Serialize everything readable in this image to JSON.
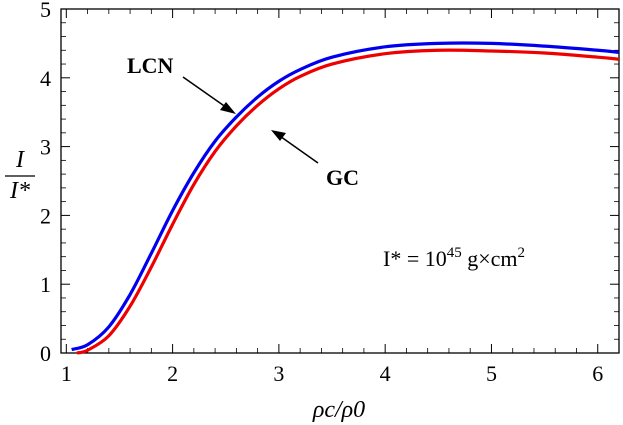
{
  "chart_data": {
    "type": "line",
    "title": "",
    "xlabel": "ρc/ρ0",
    "ylabel_num": "I",
    "ylabel_den": "I*",
    "xlim": [
      0.95,
      6.2
    ],
    "ylim": [
      0,
      5
    ],
    "xticks": [
      1,
      2,
      3,
      4,
      5,
      6
    ],
    "yticks": [
      0,
      1,
      2,
      3,
      4,
      5
    ],
    "grid": false,
    "series": [
      {
        "name": "LCN",
        "color": "#0000ee",
        "x": [
          1.05,
          1.2,
          1.4,
          1.6,
          1.8,
          2.0,
          2.2,
          2.4,
          2.6,
          2.8,
          3.0,
          3.2,
          3.5,
          4.0,
          4.5,
          5.0,
          5.5,
          6.0,
          6.2
        ],
        "y": [
          0.05,
          0.12,
          0.38,
          0.85,
          1.45,
          2.07,
          2.62,
          3.08,
          3.43,
          3.72,
          3.95,
          4.12,
          4.3,
          4.45,
          4.5,
          4.5,
          4.46,
          4.4,
          4.37
        ]
      },
      {
        "name": "GC",
        "color": "#ee0000",
        "x": [
          1.1,
          1.2,
          1.4,
          1.6,
          1.8,
          2.0,
          2.2,
          2.4,
          2.6,
          2.8,
          3.0,
          3.2,
          3.5,
          4.0,
          4.5,
          5.0,
          5.5,
          6.0,
          6.2
        ],
        "y": [
          0.0,
          0.04,
          0.25,
          0.68,
          1.25,
          1.87,
          2.45,
          2.93,
          3.3,
          3.6,
          3.84,
          4.02,
          4.2,
          4.35,
          4.4,
          4.39,
          4.36,
          4.3,
          4.27
        ]
      }
    ],
    "annotations": [
      {
        "text": "LCN"
      },
      {
        "text": "GC"
      }
    ],
    "constant_label": {
      "prefix": "I* = 10",
      "exponent": "45",
      "unit": " g×cm",
      "unit_exp": "2"
    }
  }
}
